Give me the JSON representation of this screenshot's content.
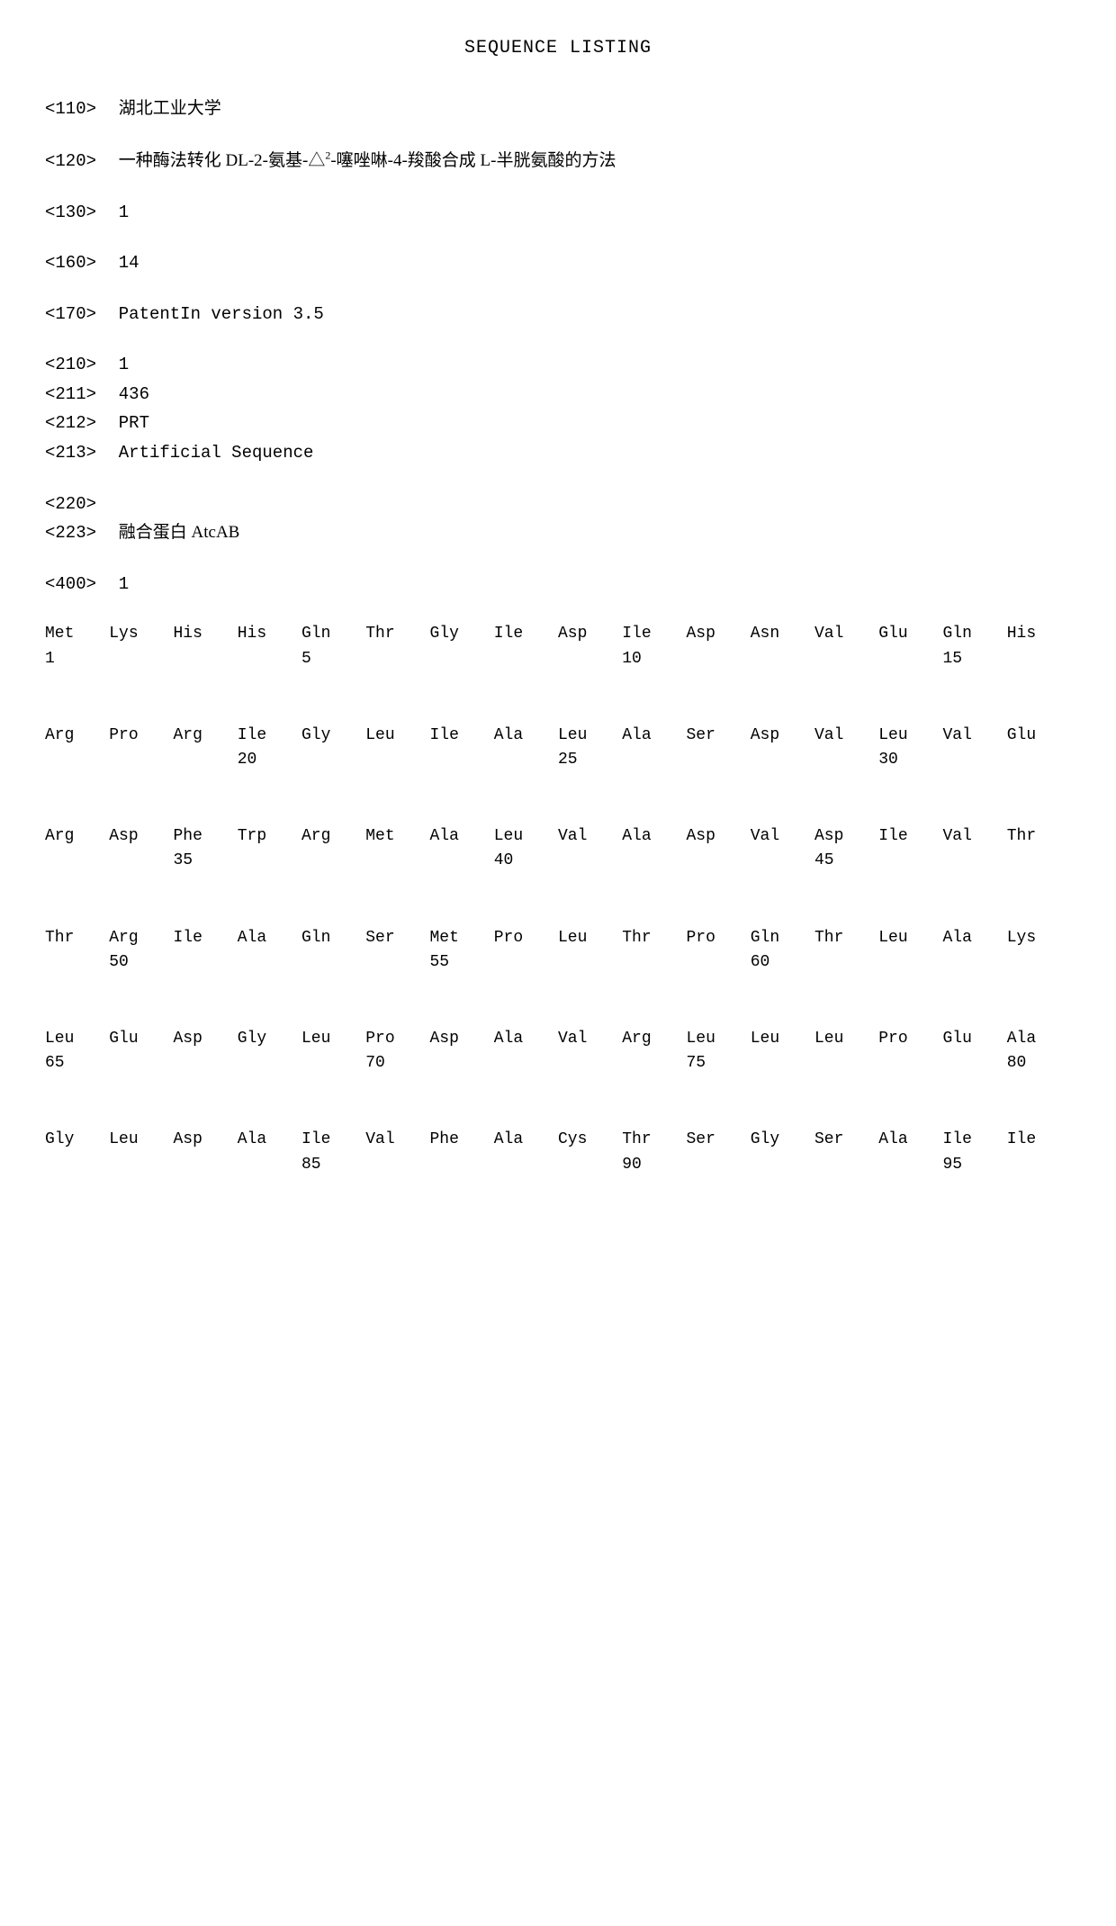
{
  "title": "SEQUENCE LISTING",
  "header": {
    "f110": {
      "tag": "<110>",
      "value": "湖北工业大学"
    },
    "f120": {
      "tag": "<120>",
      "value_prefix": "一种酶法转化 DL-2-氨基-△",
      "value_sup": "2",
      "value_suffix": "-噻唑啉-4-羧酸合成 L-半胱氨酸的方法"
    },
    "f130": {
      "tag": "<130>",
      "value": "1"
    },
    "f160": {
      "tag": "<160>",
      "value": "14"
    },
    "f170": {
      "tag": "<170>",
      "value": "PatentIn version 3.5"
    }
  },
  "seq1": {
    "f210": {
      "tag": "<210>",
      "value": "1"
    },
    "f211": {
      "tag": "<211>",
      "value": "436"
    },
    "f212": {
      "tag": "<212>",
      "value": "PRT"
    },
    "f213": {
      "tag": "<213>",
      "value": "Artificial Sequence"
    },
    "f220": {
      "tag": "<220>",
      "value": ""
    },
    "f223": {
      "tag": "<223>",
      "value": "融合蛋白 AtcAB"
    },
    "f400": {
      "tag": "<400>",
      "value": "1"
    }
  },
  "sequence": {
    "rows": [
      {
        "residues": [
          "Met",
          "Lys",
          "His",
          "His",
          "Gln",
          "Thr",
          "Gly",
          "Ile",
          "Asp",
          "Ile",
          "Asp",
          "Asn",
          "Val",
          "Glu",
          "Gln",
          "His"
        ],
        "numbers": [
          "1",
          "",
          "",
          "",
          "5",
          "",
          "",
          "",
          "",
          "10",
          "",
          "",
          "",
          "",
          "15",
          ""
        ]
      },
      {
        "residues": [
          "Arg",
          "Pro",
          "Arg",
          "Ile",
          "Gly",
          "Leu",
          "Ile",
          "Ala",
          "Leu",
          "Ala",
          "Ser",
          "Asp",
          "Val",
          "Leu",
          "Val",
          "Glu"
        ],
        "numbers": [
          "",
          "",
          "",
          "20",
          "",
          "",
          "",
          "",
          "25",
          "",
          "",
          "",
          "",
          "30",
          "",
          ""
        ]
      },
      {
        "residues": [
          "Arg",
          "Asp",
          "Phe",
          "Trp",
          "Arg",
          "Met",
          "Ala",
          "Leu",
          "Val",
          "Ala",
          "Asp",
          "Val",
          "Asp",
          "Ile",
          "Val",
          "Thr"
        ],
        "numbers": [
          "",
          "",
          "35",
          "",
          "",
          "",
          "",
          "40",
          "",
          "",
          "",
          "",
          "45",
          "",
          "",
          ""
        ]
      },
      {
        "residues": [
          "Thr",
          "Arg",
          "Ile",
          "Ala",
          "Gln",
          "Ser",
          "Met",
          "Pro",
          "Leu",
          "Thr",
          "Pro",
          "Gln",
          "Thr",
          "Leu",
          "Ala",
          "Lys"
        ],
        "numbers": [
          "",
          "50",
          "",
          "",
          "",
          "",
          "55",
          "",
          "",
          "",
          "",
          "60",
          "",
          "",
          "",
          ""
        ]
      },
      {
        "residues": [
          "Leu",
          "Glu",
          "Asp",
          "Gly",
          "Leu",
          "Pro",
          "Asp",
          "Ala",
          "Val",
          "Arg",
          "Leu",
          "Leu",
          "Leu",
          "Pro",
          "Glu",
          "Ala"
        ],
        "numbers": [
          "65",
          "",
          "",
          "",
          "",
          "70",
          "",
          "",
          "",
          "",
          "75",
          "",
          "",
          "",
          "",
          "80"
        ]
      },
      {
        "residues": [
          "Gly",
          "Leu",
          "Asp",
          "Ala",
          "Ile",
          "Val",
          "Phe",
          "Ala",
          "Cys",
          "Thr",
          "Ser",
          "Gly",
          "Ser",
          "Ala",
          "Ile",
          "Ile"
        ],
        "numbers": [
          "",
          "",
          "",
          "",
          "85",
          "",
          "",
          "",
          "",
          "90",
          "",
          "",
          "",
          "",
          "95",
          ""
        ]
      }
    ]
  }
}
